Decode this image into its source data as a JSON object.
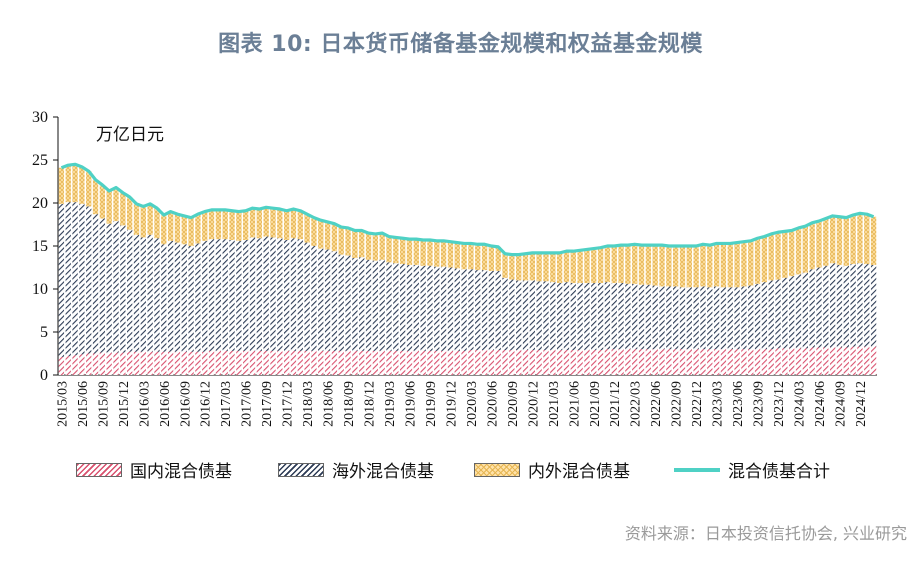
{
  "title": "图表 10: 日本货币储备基金规模和权益基金规模",
  "unit_label": "万亿日元",
  "source": "资料来源：日本投资信托协会, 兴业研究",
  "legend": {
    "domestic": "国内混合债基",
    "foreign": "海外混合债基",
    "mixed": "内外混合债基",
    "total": "混合债基合计"
  },
  "colors": {
    "domestic": "#d9506e",
    "foreign": "#2c3b55",
    "mixed_fill": "#ffe2a8",
    "mixed_pattern": "#e6b654",
    "total_line": "#4fd1c5"
  },
  "chart_data": {
    "type": "bar",
    "stacked": true,
    "ylim": [
      0,
      30
    ],
    "yticks": [
      0,
      5,
      10,
      15,
      20,
      25,
      30
    ],
    "start_month": "2015/03",
    "xtick_labels": [
      "2015/03",
      "2015/06",
      "2015/09",
      "2015/12",
      "2016/03",
      "2016/06",
      "2016/09",
      "2016/12",
      "2017/03",
      "2017/06",
      "2017/09",
      "2017/12",
      "2018/03",
      "2018/06",
      "2018/09",
      "2018/12",
      "2019/03",
      "2019/06",
      "2019/09",
      "2019/12",
      "2020/03",
      "2020/06",
      "2020/09",
      "2020/12",
      "2021/03",
      "2021/06",
      "2021/09",
      "2021/12",
      "2022/03",
      "2022/06",
      "2022/09",
      "2022/12",
      "2023/03",
      "2023/06",
      "2023/09",
      "2023/12",
      "2024/03",
      "2024/06",
      "2024/09",
      "2024/12"
    ],
    "series": [
      {
        "name": "国内混合债基",
        "values": [
          2.1,
          2.2,
          2.3,
          2.4,
          2.5,
          2.5,
          2.6,
          2.6,
          2.6,
          2.6,
          2.7,
          2.7,
          2.7,
          2.7,
          2.7,
          2.7,
          2.7,
          2.7,
          2.7,
          2.7,
          2.7,
          2.7,
          2.8,
          2.8,
          2.8,
          2.8,
          2.8,
          2.8,
          2.8,
          2.8,
          2.8,
          2.8,
          2.8,
          2.8,
          2.8,
          2.8,
          2.8,
          2.8,
          2.8,
          2.8,
          2.8,
          2.8,
          2.8,
          2.8,
          2.8,
          2.8,
          2.8,
          2.8,
          2.8,
          2.8,
          2.8,
          2.8,
          2.8,
          2.8,
          2.8,
          2.8,
          2.8,
          2.8,
          2.8,
          2.8,
          2.9,
          2.9,
          2.9,
          2.9,
          2.9,
          2.9,
          2.9,
          2.9,
          2.9,
          2.9,
          2.9,
          2.9,
          2.9,
          2.9,
          2.9,
          2.9,
          2.9,
          2.9,
          2.9,
          2.9,
          3.0,
          3.0,
          3.0,
          3.0,
          3.0,
          3.0,
          3.0,
          3.0,
          3.0,
          3.0,
          3.0,
          3.0,
          3.0,
          3.0,
          3.0,
          3.0,
          3.0,
          3.0,
          3.0,
          3.0,
          3.0,
          3.0,
          3.0,
          3.0,
          3.0,
          3.1,
          3.1,
          3.1,
          3.1,
          3.1,
          3.2,
          3.2,
          3.2,
          3.2,
          3.2,
          3.2,
          3.3,
          3.3,
          3.3,
          3.3
        ]
      },
      {
        "name": "海外混合债基",
        "values": [
          17.8,
          17.9,
          17.8,
          17.5,
          17.1,
          16.2,
          15.6,
          15.0,
          15.3,
          14.8,
          14.2,
          13.6,
          13.3,
          13.6,
          13.2,
          12.5,
          12.9,
          12.7,
          12.5,
          12.3,
          12.6,
          12.9,
          13.0,
          13.0,
          13.0,
          12.9,
          12.8,
          12.9,
          13.2,
          13.1,
          13.3,
          13.2,
          13.1,
          12.9,
          13.1,
          13.0,
          12.6,
          12.2,
          11.9,
          11.8,
          11.6,
          11.2,
          11.1,
          10.8,
          10.9,
          10.6,
          10.5,
          10.6,
          10.3,
          10.2,
          10.1,
          10.0,
          10.0,
          9.9,
          9.9,
          9.8,
          9.8,
          9.7,
          9.6,
          9.5,
          9.4,
          9.3,
          9.3,
          9.2,
          9.2,
          8.4,
          8.2,
          8.1,
          8.1,
          8.1,
          8.0,
          8.0,
          7.9,
          7.8,
          7.9,
          7.8,
          7.8,
          7.8,
          7.8,
          7.8,
          7.8,
          7.7,
          7.7,
          7.6,
          7.6,
          7.5,
          7.5,
          7.4,
          7.3,
          7.3,
          7.3,
          7.2,
          7.2,
          7.2,
          7.3,
          7.2,
          7.3,
          7.2,
          7.2,
          7.2,
          7.3,
          7.4,
          7.6,
          7.8,
          8.0,
          8.0,
          8.2,
          8.4,
          8.6,
          8.8,
          9.1,
          9.3,
          9.5,
          9.8,
          9.6,
          9.5,
          9.6,
          9.7,
          9.6,
          9.5
        ]
      },
      {
        "name": "内外混合债基",
        "values": [
          4.2,
          4.3,
          4.4,
          4.3,
          4.1,
          4.0,
          3.9,
          3.8,
          3.9,
          3.8,
          3.8,
          3.6,
          3.6,
          3.6,
          3.5,
          3.4,
          3.4,
          3.3,
          3.3,
          3.3,
          3.4,
          3.4,
          3.4,
          3.4,
          3.4,
          3.4,
          3.4,
          3.4,
          3.4,
          3.4,
          3.4,
          3.4,
          3.4,
          3.4,
          3.4,
          3.3,
          3.3,
          3.3,
          3.3,
          3.2,
          3.2,
          3.2,
          3.2,
          3.2,
          3.1,
          3.1,
          3.1,
          3.1,
          3.0,
          3.0,
          3.0,
          3.0,
          3.0,
          3.0,
          3.0,
          3.0,
          3.0,
          3.0,
          3.0,
          3.0,
          3.0,
          3.0,
          3.0,
          2.9,
          2.8,
          2.8,
          2.9,
          3.0,
          3.1,
          3.2,
          3.3,
          3.3,
          3.4,
          3.5,
          3.6,
          3.7,
          3.8,
          3.9,
          4.0,
          4.1,
          4.2,
          4.3,
          4.4,
          4.5,
          4.6,
          4.6,
          4.6,
          4.7,
          4.8,
          4.7,
          4.7,
          4.8,
          4.8,
          4.8,
          4.9,
          4.9,
          5.0,
          5.1,
          5.1,
          5.2,
          5.2,
          5.2,
          5.3,
          5.3,
          5.4,
          5.5,
          5.4,
          5.3,
          5.4,
          5.4,
          5.4,
          5.4,
          5.5,
          5.5,
          5.6,
          5.6,
          5.7,
          5.8,
          5.8,
          5.6
        ]
      }
    ],
    "total": {
      "name": "混合债基合计",
      "values": [
        24.1,
        24.4,
        24.5,
        24.2,
        23.7,
        22.7,
        22.1,
        21.4,
        21.8,
        21.2,
        20.7,
        19.9,
        19.6,
        19.9,
        19.4,
        18.6,
        19.0,
        18.7,
        18.5,
        18.3,
        18.7,
        19.0,
        19.2,
        19.2,
        19.2,
        19.1,
        19.0,
        19.1,
        19.4,
        19.3,
        19.5,
        19.4,
        19.3,
        19.1,
        19.3,
        19.1,
        18.7,
        18.3,
        18.0,
        17.8,
        17.6,
        17.2,
        17.1,
        16.8,
        16.8,
        16.5,
        16.4,
        16.5,
        16.1,
        16.0,
        15.9,
        15.8,
        15.8,
        15.7,
        15.7,
        15.6,
        15.6,
        15.5,
        15.4,
        15.3,
        15.3,
        15.2,
        15.2,
        15.0,
        14.9,
        14.1,
        14.0,
        14.0,
        14.1,
        14.2,
        14.2,
        14.2,
        14.2,
        14.2,
        14.4,
        14.4,
        14.5,
        14.6,
        14.7,
        14.8,
        15.0,
        15.0,
        15.1,
        15.1,
        15.2,
        15.1,
        15.1,
        15.1,
        15.1,
        15.0,
        15.0,
        15.0,
        15.0,
        15.0,
        15.2,
        15.1,
        15.3,
        15.3,
        15.3,
        15.4,
        15.5,
        15.6,
        15.9,
        16.1,
        16.4,
        16.6,
        16.7,
        16.8,
        17.1,
        17.3,
        17.7,
        17.9,
        18.2,
        18.5,
        18.4,
        18.3,
        18.6,
        18.8,
        18.7,
        18.4
      ]
    }
  }
}
